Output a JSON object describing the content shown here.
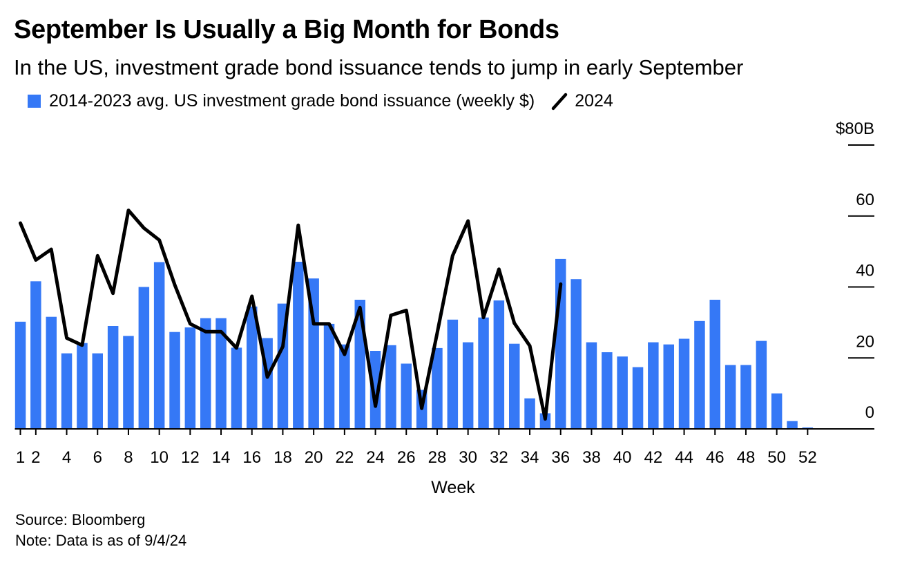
{
  "header": {
    "title": "September Is Usually a Big Month for Bonds",
    "subtitle": "In the US, investment grade bond issuance tends to jump in early September"
  },
  "legend": {
    "bars_label": "2014-2023 avg. US investment grade bond issuance (weekly $)",
    "line_label": "2024",
    "bar_color": "#3578f6",
    "line_color": "#000000"
  },
  "footer": {
    "source": "Source: Bloomberg",
    "note": "Note: Data is as of 9/4/24"
  },
  "chart_data": {
    "type": "bar",
    "title": "September Is Usually a Big Month for Bonds",
    "subtitle": "In the US, investment grade bond issuance tends to jump in early September",
    "xlabel": "Week",
    "ylabel": "",
    "ylim": [
      0,
      80
    ],
    "y_ticks": [
      0,
      20,
      40,
      60,
      80
    ],
    "y_tick_labels": [
      "0",
      "20",
      "40",
      "60",
      "$80B"
    ],
    "x_tick_labels": [
      "1",
      "2",
      "4",
      "6",
      "8",
      "10",
      "12",
      "14",
      "16",
      "18",
      "20",
      "22",
      "24",
      "26",
      "28",
      "30",
      "32",
      "34",
      "36",
      "38",
      "40",
      "42",
      "44",
      "46",
      "48",
      "50",
      "52"
    ],
    "x_tick_weeks": [
      1,
      2,
      4,
      6,
      8,
      10,
      12,
      14,
      16,
      18,
      20,
      22,
      24,
      26,
      28,
      30,
      32,
      34,
      36,
      38,
      40,
      42,
      44,
      46,
      48,
      50,
      52
    ],
    "grid": false,
    "legend_position": "top-left",
    "series": [
      {
        "name": "2014-2023 avg. US investment grade bond issuance (weekly $)",
        "type": "bar",
        "color": "#3578f6",
        "x": [
          1,
          2,
          3,
          4,
          5,
          6,
          7,
          8,
          9,
          10,
          11,
          12,
          13,
          14,
          15,
          16,
          17,
          18,
          19,
          20,
          21,
          22,
          23,
          24,
          25,
          26,
          27,
          28,
          29,
          30,
          31,
          32,
          33,
          34,
          35,
          36,
          37,
          38,
          39,
          40,
          41,
          42,
          43,
          44,
          45,
          46,
          47,
          48,
          49,
          50,
          51,
          52
        ],
        "values": [
          30.2,
          41.6,
          31.6,
          21.3,
          24.2,
          21.3,
          29.0,
          26.2,
          40.0,
          47.0,
          27.3,
          28.6,
          31.2,
          31.2,
          22.9,
          34.5,
          25.6,
          35.3,
          47.1,
          42.4,
          29.6,
          23.8,
          36.4,
          22.0,
          23.6,
          18.4,
          11.0,
          22.8,
          30.8,
          24.4,
          31.4,
          36.2,
          24.0,
          8.6,
          4.4,
          47.9,
          42.2,
          24.4,
          21.6,
          20.4,
          17.4,
          24.4,
          23.8,
          25.4,
          30.4,
          36.4,
          18.0,
          18.0,
          24.8,
          10.0,
          2.2,
          0.4
        ]
      },
      {
        "name": "2024",
        "type": "line",
        "color": "#000000",
        "x": [
          1,
          2,
          3,
          4,
          5,
          6,
          7,
          8,
          9,
          10,
          11,
          12,
          13,
          14,
          15,
          16,
          17,
          18,
          19,
          20,
          21,
          22,
          23,
          24,
          25,
          26,
          27,
          28,
          29,
          30,
          31,
          32,
          33,
          34,
          35,
          36
        ],
        "values": [
          58.0,
          47.6,
          50.6,
          25.6,
          23.6,
          48.8,
          38.2,
          61.6,
          56.6,
          53.2,
          40.6,
          29.6,
          27.4,
          27.4,
          22.8,
          37.4,
          14.6,
          23.2,
          57.4,
          29.6,
          29.6,
          21.0,
          34.2,
          6.4,
          32.0,
          33.4,
          5.8,
          27.0,
          48.8,
          58.6,
          31.4,
          45.0,
          29.8,
          23.4,
          2.8,
          40.8
        ]
      }
    ]
  }
}
